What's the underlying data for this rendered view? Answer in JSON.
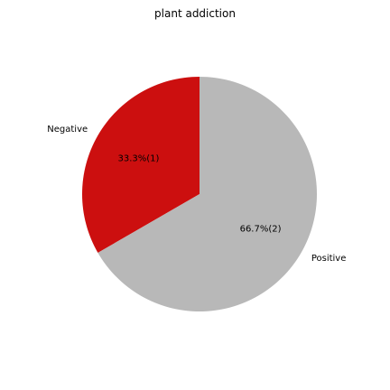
{
  "chart_data": {
    "type": "pie",
    "title": "plant addiction",
    "slices": [
      {
        "label": "Negative",
        "value": 1,
        "pct_label": "33.3%(1)",
        "color": "#cc0f0f"
      },
      {
        "label": "Positive",
        "value": 2,
        "pct_label": "66.7%(2)",
        "color": "#b8b8b8"
      }
    ],
    "start_angle_deg": 90,
    "direction": "counterclockwise"
  }
}
